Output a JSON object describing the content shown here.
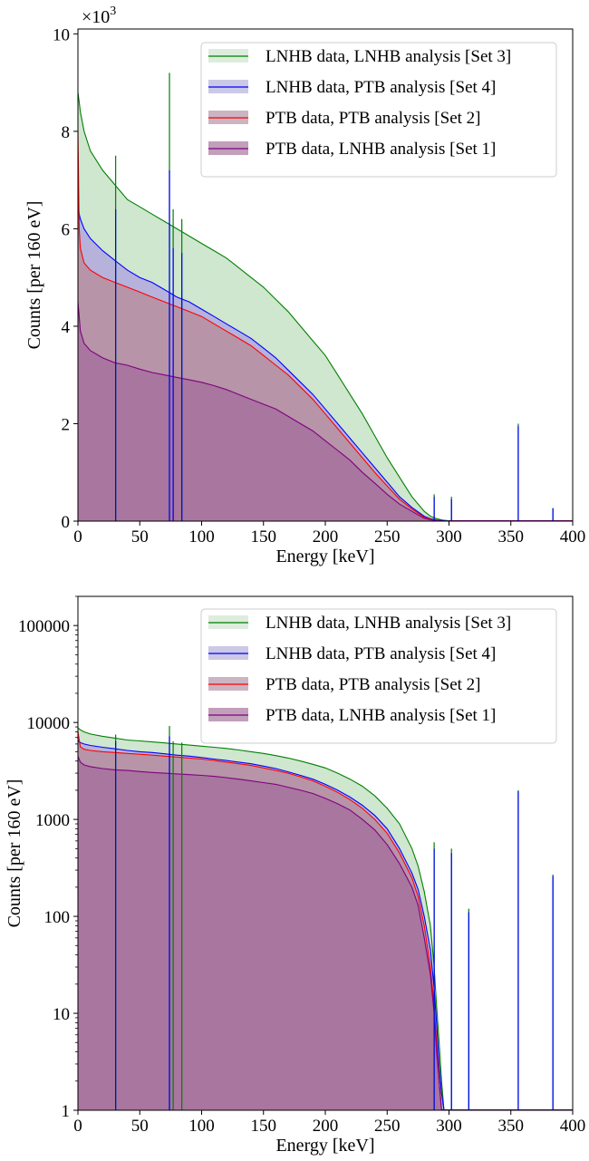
{
  "chart_data": [
    {
      "type": "area",
      "xlabel": "Energy [keV]",
      "ylabel": "Counts [per 160 eV]",
      "offset_text_base": "×10",
      "offset_text_exp": "3",
      "y_scale": "linear",
      "xlim": [
        0,
        400
      ],
      "ylim": [
        0,
        10.1
      ],
      "x_ticks": [
        0,
        50,
        100,
        150,
        200,
        250,
        300,
        350,
        400
      ],
      "y_ticks": [
        0,
        2,
        4,
        6,
        8,
        10
      ],
      "y_tick_labels": [
        "0",
        "2",
        "4",
        "6",
        "8",
        "10"
      ],
      "grid": false,
      "legend_position": "upper right",
      "series": [
        {
          "name": "LNHB data, LNHB analysis [Set 3]",
          "line_color": "#008000",
          "fill_color": "#cfe6cf",
          "x": [
            0,
            1,
            2,
            5,
            10,
            20,
            30,
            40,
            50,
            60,
            70,
            80,
            90,
            100,
            110,
            120,
            130,
            140,
            150,
            160,
            170,
            180,
            190,
            200,
            210,
            220,
            230,
            240,
            250,
            260,
            270,
            280,
            285,
            290,
            295,
            300
          ],
          "y": [
            8.8,
            8.6,
            8.4,
            8.0,
            7.6,
            7.2,
            6.9,
            6.6,
            6.45,
            6.3,
            6.15,
            6.0,
            5.85,
            5.7,
            5.55,
            5.4,
            5.2,
            5.0,
            4.8,
            4.55,
            4.3,
            4.0,
            3.7,
            3.4,
            3.0,
            2.6,
            2.2,
            1.75,
            1.3,
            0.9,
            0.5,
            0.2,
            0.1,
            0.05,
            0.02,
            0.01
          ],
          "peaks": [
            {
              "x": 30.5,
              "y": 7.5
            },
            {
              "x": 74,
              "y": 9.2
            },
            {
              "x": 77,
              "y": 6.4
            },
            {
              "x": 84,
              "y": 6.2
            },
            {
              "x": 288,
              "y": 0.55
            },
            {
              "x": 302,
              "y": 0.5
            },
            {
              "x": 356,
              "y": 2.0
            },
            {
              "x": 384,
              "y": 0.27
            }
          ]
        },
        {
          "name": "LNHB data, PTB analysis [Set 4]",
          "line_color": "#0000ff",
          "fill_color": "#b7b2dc",
          "x": [
            0,
            1,
            2,
            5,
            10,
            20,
            30,
            40,
            50,
            60,
            70,
            80,
            90,
            100,
            110,
            120,
            130,
            140,
            150,
            160,
            170,
            180,
            190,
            200,
            210,
            220,
            230,
            240,
            250,
            260,
            270,
            280,
            285,
            290,
            295,
            300
          ],
          "y": [
            6.5,
            6.3,
            6.2,
            6.0,
            5.8,
            5.55,
            5.35,
            5.15,
            5.0,
            4.9,
            4.75,
            4.6,
            4.5,
            4.35,
            4.2,
            4.05,
            3.9,
            3.75,
            3.55,
            3.35,
            3.1,
            2.85,
            2.6,
            2.3,
            2.0,
            1.7,
            1.4,
            1.1,
            0.8,
            0.5,
            0.28,
            0.1,
            0.05,
            0.02,
            0.01,
            0.0
          ],
          "peaks": [
            {
              "x": 30.5,
              "y": 6.4
            },
            {
              "x": 74,
              "y": 7.2
            },
            {
              "x": 77,
              "y": 5.6
            },
            {
              "x": 84,
              "y": 5.5
            },
            {
              "x": 288,
              "y": 0.5
            },
            {
              "x": 302,
              "y": 0.45
            },
            {
              "x": 356,
              "y": 1.95
            },
            {
              "x": 384,
              "y": 0.26
            }
          ]
        },
        {
          "name": "PTB data, PTB analysis [Set 2]",
          "line_color": "#ff0000",
          "fill_color": "#b794a8",
          "x": [
            0,
            1,
            2,
            5,
            10,
            20,
            30,
            40,
            50,
            60,
            70,
            80,
            90,
            100,
            110,
            120,
            130,
            140,
            150,
            160,
            170,
            180,
            190,
            200,
            210,
            220,
            230,
            240,
            250,
            260,
            270,
            280,
            285,
            290,
            295,
            300
          ],
          "y": [
            8.0,
            6.0,
            5.6,
            5.3,
            5.15,
            5.0,
            4.9,
            4.8,
            4.7,
            4.6,
            4.5,
            4.4,
            4.3,
            4.2,
            4.05,
            3.9,
            3.75,
            3.6,
            3.4,
            3.2,
            3.0,
            2.75,
            2.5,
            2.2,
            1.9,
            1.6,
            1.3,
            1.0,
            0.72,
            0.45,
            0.25,
            0.08,
            0.04,
            0.01,
            0.0,
            0.0
          ],
          "peaks": []
        },
        {
          "name": "PTB data, LNHB analysis [Set 1]",
          "line_color": "#800080",
          "fill_color": "#a8769e",
          "x": [
            0,
            1,
            2,
            5,
            10,
            20,
            30,
            40,
            50,
            60,
            70,
            80,
            90,
            100,
            110,
            120,
            130,
            140,
            150,
            160,
            170,
            180,
            190,
            200,
            210,
            220,
            230,
            240,
            250,
            260,
            270,
            280,
            285,
            290,
            295,
            300
          ],
          "y": [
            4.5,
            4.2,
            3.9,
            3.65,
            3.5,
            3.35,
            3.25,
            3.2,
            3.12,
            3.05,
            3.0,
            2.95,
            2.9,
            2.85,
            2.78,
            2.7,
            2.6,
            2.5,
            2.4,
            2.3,
            2.15,
            2.0,
            1.85,
            1.65,
            1.45,
            1.25,
            1.0,
            0.78,
            0.55,
            0.35,
            0.2,
            0.06,
            0.03,
            0.01,
            0.0,
            0.0
          ],
          "peaks": []
        }
      ]
    },
    {
      "type": "area",
      "xlabel": "Energy [keV]",
      "ylabel": "Counts [per 160 eV]",
      "y_scale": "log",
      "xlim": [
        0,
        400
      ],
      "ylim": [
        1,
        200000
      ],
      "x_ticks": [
        0,
        50,
        100,
        150,
        200,
        250,
        300,
        350,
        400
      ],
      "y_ticks": [
        1,
        10,
        100,
        1000,
        10000,
        100000
      ],
      "y_tick_labels": [
        "1",
        "10",
        "100",
        "1000",
        "10000",
        "100000"
      ],
      "grid": false,
      "legend_position": "upper right",
      "series": [
        {
          "name": "LNHB data, LNHB analysis [Set 3]",
          "line_color": "#008000",
          "fill_color": "#cfe6cf",
          "x": [
            0,
            2,
            5,
            10,
            20,
            30,
            40,
            50,
            60,
            70,
            80,
            90,
            100,
            110,
            120,
            130,
            140,
            150,
            160,
            170,
            180,
            190,
            200,
            210,
            220,
            230,
            240,
            250,
            260,
            270,
            275,
            280,
            285,
            288,
            290,
            292,
            294,
            296
          ],
          "y": [
            8800,
            8400,
            8000,
            7600,
            7200,
            6900,
            6600,
            6450,
            6300,
            6150,
            6000,
            5850,
            5700,
            5550,
            5400,
            5200,
            5000,
            4800,
            4550,
            4300,
            4000,
            3700,
            3400,
            3000,
            2600,
            2200,
            1750,
            1300,
            900,
            500,
            330,
            180,
            80,
            30,
            12,
            5,
            2,
            1
          ],
          "peaks": [
            {
              "x": 30.5,
              "y": 7500
            },
            {
              "x": 74,
              "y": 9200
            },
            {
              "x": 77,
              "y": 6400
            },
            {
              "x": 84,
              "y": 6200
            },
            {
              "x": 288,
              "y": 580
            },
            {
              "x": 302,
              "y": 500
            },
            {
              "x": 316,
              "y": 120
            },
            {
              "x": 356,
              "y": 2000
            },
            {
              "x": 384,
              "y": 270
            }
          ]
        },
        {
          "name": "LNHB data, PTB analysis [Set 4]",
          "line_color": "#0000ff",
          "fill_color": "#b7b2dc",
          "x": [
            0,
            2,
            5,
            10,
            20,
            30,
            40,
            50,
            60,
            70,
            80,
            90,
            100,
            110,
            120,
            130,
            140,
            150,
            160,
            170,
            180,
            190,
            200,
            210,
            220,
            230,
            240,
            250,
            260,
            270,
            275,
            280,
            285,
            288,
            290,
            292,
            294,
            296
          ],
          "y": [
            6500,
            6200,
            6000,
            5800,
            5550,
            5350,
            5150,
            5000,
            4900,
            4750,
            4600,
            4500,
            4350,
            4200,
            4050,
            3900,
            3750,
            3550,
            3350,
            3100,
            2850,
            2600,
            2300,
            2000,
            1700,
            1400,
            1100,
            800,
            500,
            280,
            190,
            100,
            45,
            18,
            8,
            3,
            1.5,
            1
          ],
          "peaks": [
            {
              "x": 30.5,
              "y": 6400
            },
            {
              "x": 74,
              "y": 7200
            },
            {
              "x": 288,
              "y": 500
            },
            {
              "x": 302,
              "y": 450
            },
            {
              "x": 316,
              "y": 110
            },
            {
              "x": 356,
              "y": 1950
            },
            {
              "x": 384,
              "y": 260
            }
          ]
        },
        {
          "name": "PTB data, PTB analysis [Set 2]",
          "line_color": "#ff0000",
          "fill_color": "#b794a8",
          "x": [
            0,
            2,
            5,
            10,
            20,
            30,
            40,
            50,
            60,
            70,
            80,
            90,
            100,
            110,
            120,
            130,
            140,
            150,
            160,
            170,
            180,
            190,
            200,
            210,
            220,
            230,
            240,
            250,
            260,
            270,
            275,
            280,
            285,
            288,
            290,
            292,
            294
          ],
          "y": [
            8000,
            5600,
            5300,
            5150,
            5000,
            4900,
            4800,
            4700,
            4600,
            4500,
            4400,
            4300,
            4200,
            4050,
            3900,
            3750,
            3600,
            3400,
            3200,
            3000,
            2750,
            2500,
            2200,
            1900,
            1600,
            1300,
            1000,
            720,
            450,
            250,
            160,
            80,
            30,
            12,
            5,
            2,
            1
          ],
          "peaks": []
        },
        {
          "name": "PTB data, LNHB analysis [Set 1]",
          "line_color": "#800080",
          "fill_color": "#a8769e",
          "x": [
            0,
            2,
            5,
            10,
            20,
            30,
            40,
            50,
            60,
            70,
            80,
            90,
            100,
            110,
            120,
            130,
            140,
            150,
            160,
            170,
            180,
            190,
            200,
            210,
            220,
            230,
            240,
            250,
            260,
            270,
            275,
            280,
            285,
            288,
            290,
            292,
            294
          ],
          "y": [
            4500,
            3900,
            3650,
            3500,
            3350,
            3250,
            3200,
            3120,
            3050,
            3000,
            2950,
            2900,
            2850,
            2780,
            2700,
            2600,
            2500,
            2400,
            2300,
            2150,
            2000,
            1850,
            1650,
            1450,
            1250,
            1000,
            780,
            550,
            350,
            200,
            130,
            60,
            25,
            10,
            4,
            2,
            1
          ],
          "peaks": []
        }
      ]
    }
  ]
}
